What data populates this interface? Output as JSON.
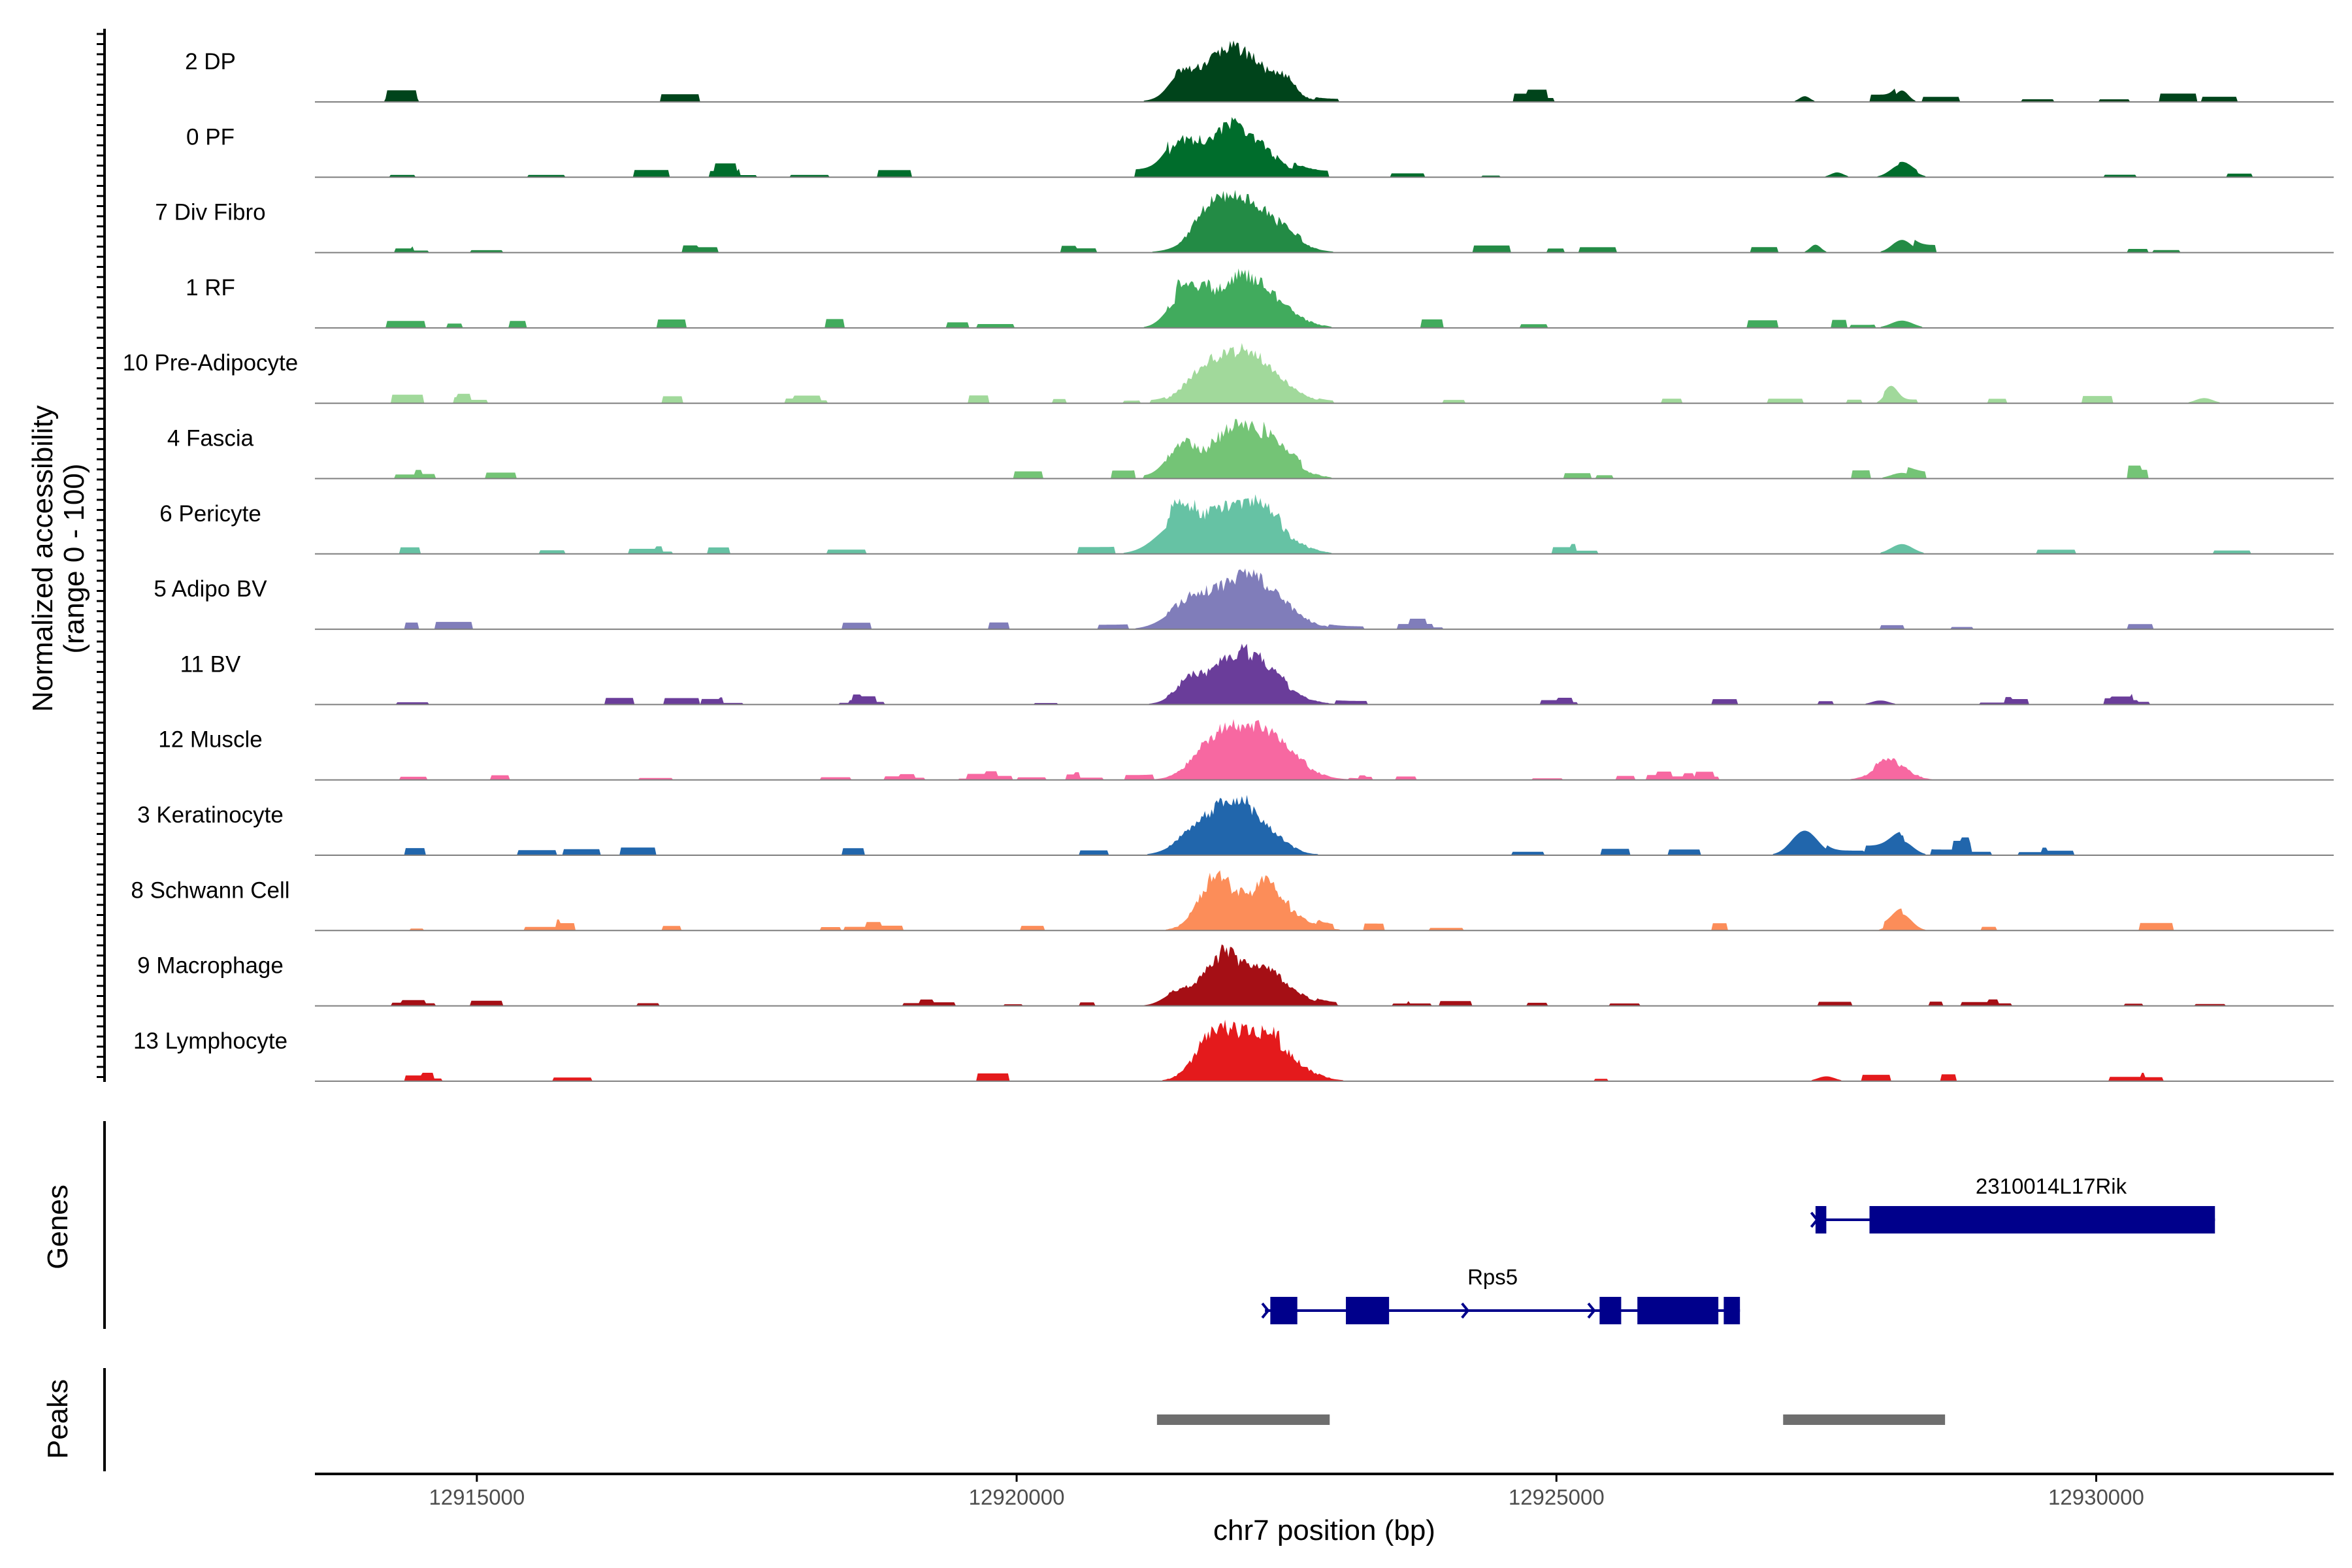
{
  "chart_data": {
    "type": "coverage",
    "genome": "chr7",
    "xlim": [
      12913500,
      12932200
    ],
    "xlabel": "chr7 position (bp)",
    "x_ticks": [
      12915000,
      12920000,
      12925000,
      12930000
    ],
    "x_tick_labels": [
      "12915000",
      "12920000",
      "12925000",
      "12930000"
    ],
    "coverage_ylabel_line1": "Normalized accessibility",
    "coverage_ylabel_line2": "(range 0 - 100)",
    "genes_label": "Genes",
    "peaks_label": "Peaks",
    "tracks": [
      {
        "name": "2 DP",
        "color": "#00441b",
        "scale": 0.98,
        "spikes": 0.3,
        "peaks": [
          [
            12921500,
            100,
            8
          ],
          [
            12922000,
            300,
            26
          ],
          [
            12922500,
            80,
            6
          ],
          [
            12928200,
            60,
            6
          ],
          [
            12927300,
            50,
            3
          ]
        ],
        "bumps": [
          [
            12921450,
            12922950,
            0.05
          ]
        ]
      },
      {
        "name": "0 PF",
        "color": "#006d2c",
        "scale": 0.96,
        "spikes": 0.4,
        "peaks": [
          [
            12921500,
            120,
            14
          ],
          [
            12922000,
            300,
            28
          ],
          [
            12928200,
            100,
            8
          ],
          [
            12927600,
            60,
            3
          ]
        ],
        "bumps": [
          [
            12921400,
            12922800,
            0.06
          ]
        ]
      },
      {
        "name": "7 Div Fibro",
        "color": "#238b45",
        "scale": 1.0,
        "spikes": 0.4,
        "peaks": [
          [
            12921800,
            150,
            10
          ],
          [
            12922100,
            300,
            30
          ],
          [
            12928200,
            90,
            8
          ],
          [
            12927400,
            50,
            5
          ]
        ],
        "bumps": [
          [
            12921500,
            12922800,
            0.05
          ]
        ]
      },
      {
        "name": "1 RF",
        "color": "#41ab5d",
        "scale": 0.95,
        "spikes": 0.35,
        "peaks": [
          [
            12921500,
            120,
            12
          ],
          [
            12922100,
            300,
            26
          ],
          [
            12928200,
            100,
            4
          ]
        ],
        "bumps": [
          [
            12921400,
            12922900,
            0.06
          ]
        ]
      },
      {
        "name": "10 Pre-Adipocyte",
        "color": "#a1d99b",
        "scale": 0.96,
        "spikes": 0.45,
        "peaks": [
          [
            12921700,
            150,
            8
          ],
          [
            12922100,
            300,
            28
          ],
          [
            12928100,
            60,
            8
          ],
          [
            12931000,
            80,
            3
          ]
        ],
        "bumps": [
          [
            12921400,
            12922800,
            0.05
          ]
        ]
      },
      {
        "name": "4 Fascia",
        "color": "#74c476",
        "scale": 0.95,
        "spikes": 0.35,
        "peaks": [
          [
            12921500,
            120,
            12
          ],
          [
            12922100,
            300,
            26
          ],
          [
            12928200,
            100,
            3
          ]
        ],
        "bumps": [
          [
            12921400,
            12922900,
            0.06
          ]
        ]
      },
      {
        "name": "6 Pericyte",
        "color": "#66c2a4",
        "scale": 0.95,
        "spikes": 0.35,
        "peaks": [
          [
            12921500,
            200,
            14
          ],
          [
            12922100,
            300,
            24
          ],
          [
            12928200,
            100,
            5
          ]
        ],
        "bumps": [
          [
            12921400,
            12922900,
            0.06
          ]
        ]
      },
      {
        "name": "5 Adipo BV",
        "color": "#807dba",
        "scale": 0.97,
        "spikes": 0.3,
        "peaks": [
          [
            12921600,
            200,
            14
          ],
          [
            12922150,
            300,
            32
          ]
        ],
        "bumps": [
          [
            12921400,
            12922900,
            0.06
          ]
        ]
      },
      {
        "name": "11 BV",
        "color": "#6a3d9a",
        "scale": 0.97,
        "spikes": 0.55,
        "peaks": [
          [
            12921600,
            130,
            12
          ],
          [
            12922100,
            300,
            30
          ],
          [
            12928000,
            80,
            3
          ]
        ],
        "bumps": [
          [
            12921400,
            12923100,
            0.05
          ]
        ]
      },
      {
        "name": "12 Muscle",
        "color": "#f768a1",
        "scale": 0.97,
        "spikes": 0.6,
        "peaks": [
          [
            12921800,
            180,
            18
          ],
          [
            12922200,
            300,
            44
          ],
          [
            12928100,
            150,
            14
          ]
        ],
        "bumps": [
          [
            12921400,
            12922900,
            0.05
          ],
          [
            12927600,
            12928600,
            0.06
          ]
        ]
      },
      {
        "name": "3 Keratinocyte",
        "color": "#2166ac",
        "scale": 0.96,
        "spikes": 0.45,
        "peaks": [
          [
            12921700,
            200,
            12
          ],
          [
            12922100,
            250,
            24
          ],
          [
            12927300,
            120,
            14
          ],
          [
            12928200,
            100,
            8
          ]
        ],
        "bumps": [
          [
            12921400,
            12922800,
            0.05
          ]
        ]
      },
      {
        "name": "8 Schwann Cell",
        "color": "#fc8d59",
        "scale": 0.96,
        "spikes": 0.45,
        "peaks": [
          [
            12921800,
            130,
            18
          ],
          [
            12922200,
            300,
            22
          ],
          [
            12928200,
            90,
            10
          ]
        ],
        "bumps": [
          [
            12921400,
            12922900,
            0.05
          ]
        ]
      },
      {
        "name": "9 Macrophage",
        "color": "#a50f15",
        "scale": 0.98,
        "spikes": 0.55,
        "peaks": [
          [
            12921500,
            130,
            12
          ],
          [
            12921850,
            130,
            24
          ],
          [
            12922200,
            280,
            34
          ]
        ],
        "bumps": [
          [
            12921400,
            12922900,
            0.05
          ]
        ]
      },
      {
        "name": "13 Lymphocyte",
        "color": "#e41a1c",
        "scale": 0.98,
        "spikes": 0.25,
        "peaks": [
          [
            12921800,
            150,
            16
          ],
          [
            12922200,
            300,
            28
          ],
          [
            12927500,
            80,
            3
          ]
        ],
        "bumps": [
          [
            12921400,
            12922900,
            0.06
          ]
        ]
      }
    ],
    "genes": [
      {
        "name": "2310014L17Rik",
        "strand": "+",
        "start": 12927400,
        "end": 12931100,
        "exons": [
          [
            12927400,
            12927500
          ],
          [
            12927900,
            12931100
          ]
        ],
        "row": 0
      },
      {
        "name": "Rps5",
        "strand": "+",
        "start": 12922300,
        "end": 12926700,
        "exons": [
          [
            12922350,
            12922600
          ],
          [
            12923050,
            12923450
          ],
          [
            12925400,
            12925600
          ],
          [
            12925750,
            12926500
          ],
          [
            12926550,
            12926700
          ]
        ],
        "row": 1
      }
    ],
    "peaks": [
      [
        12921300,
        12922900
      ],
      [
        12927100,
        12928600
      ]
    ]
  }
}
